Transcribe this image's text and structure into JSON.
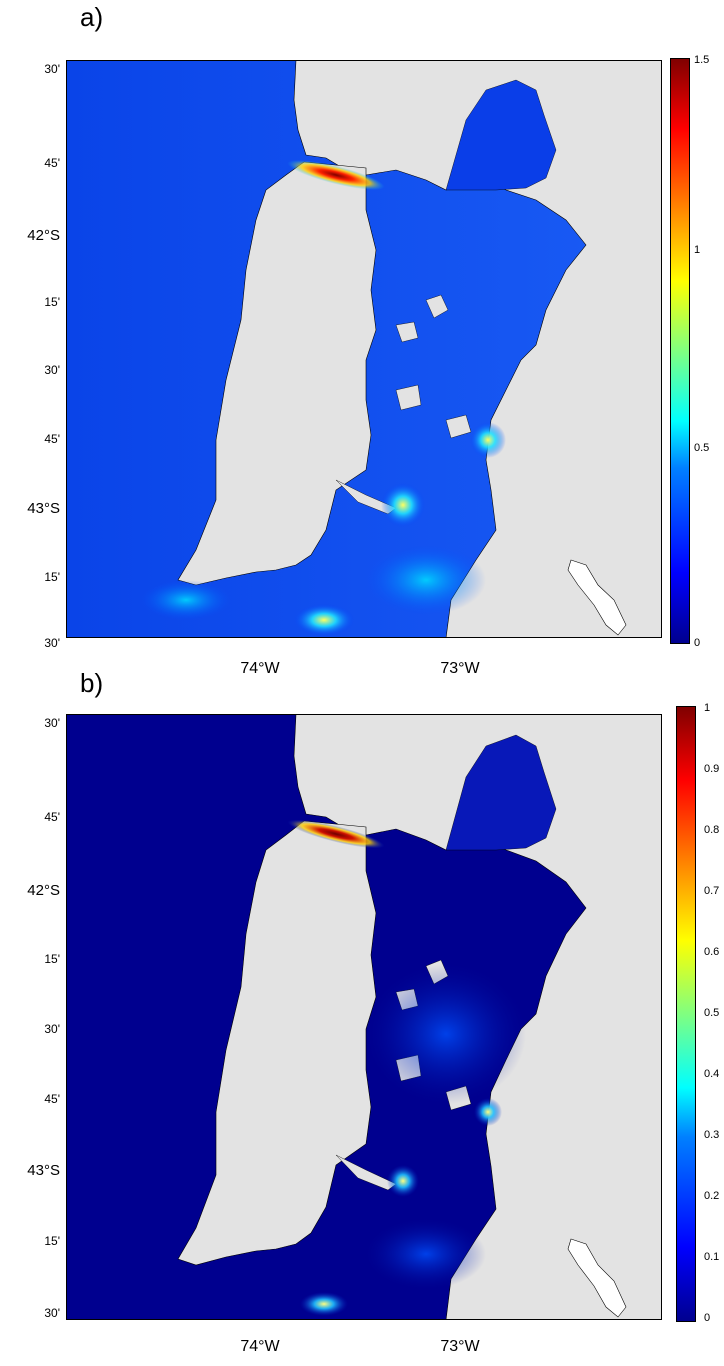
{
  "panels": [
    {
      "label": "a)",
      "lat_ticks": [
        "30'",
        "45'",
        "42°S",
        "15'",
        "30'",
        "45'",
        "43°S",
        "15'",
        "30'"
      ],
      "lon_ticks": [
        "74°W",
        "73°W"
      ],
      "colorbar": {
        "min": 0,
        "max": 1.5,
        "ticks": [
          "1.5",
          "1",
          "0.5",
          "0"
        ]
      }
    },
    {
      "label": "b)",
      "lat_ticks": [
        "30'",
        "45'",
        "42°S",
        "15'",
        "30'",
        "45'",
        "43°S",
        "15'",
        "30'"
      ],
      "lon_ticks": [
        "74°W",
        "73°W"
      ],
      "colorbar": {
        "min": 0,
        "max": 1,
        "ticks": [
          "1",
          "0.9",
          "0.8",
          "0.7",
          "0.6",
          "0.5",
          "0.4",
          "0.3",
          "0.2",
          "0.1",
          "0"
        ]
      }
    }
  ],
  "colors": {
    "land": "#e3e3e3",
    "ocean_low": "#00008f",
    "ocean_mid": "#0a3cf0",
    "hotspot": "#b40000",
    "colormap": "jet"
  }
}
